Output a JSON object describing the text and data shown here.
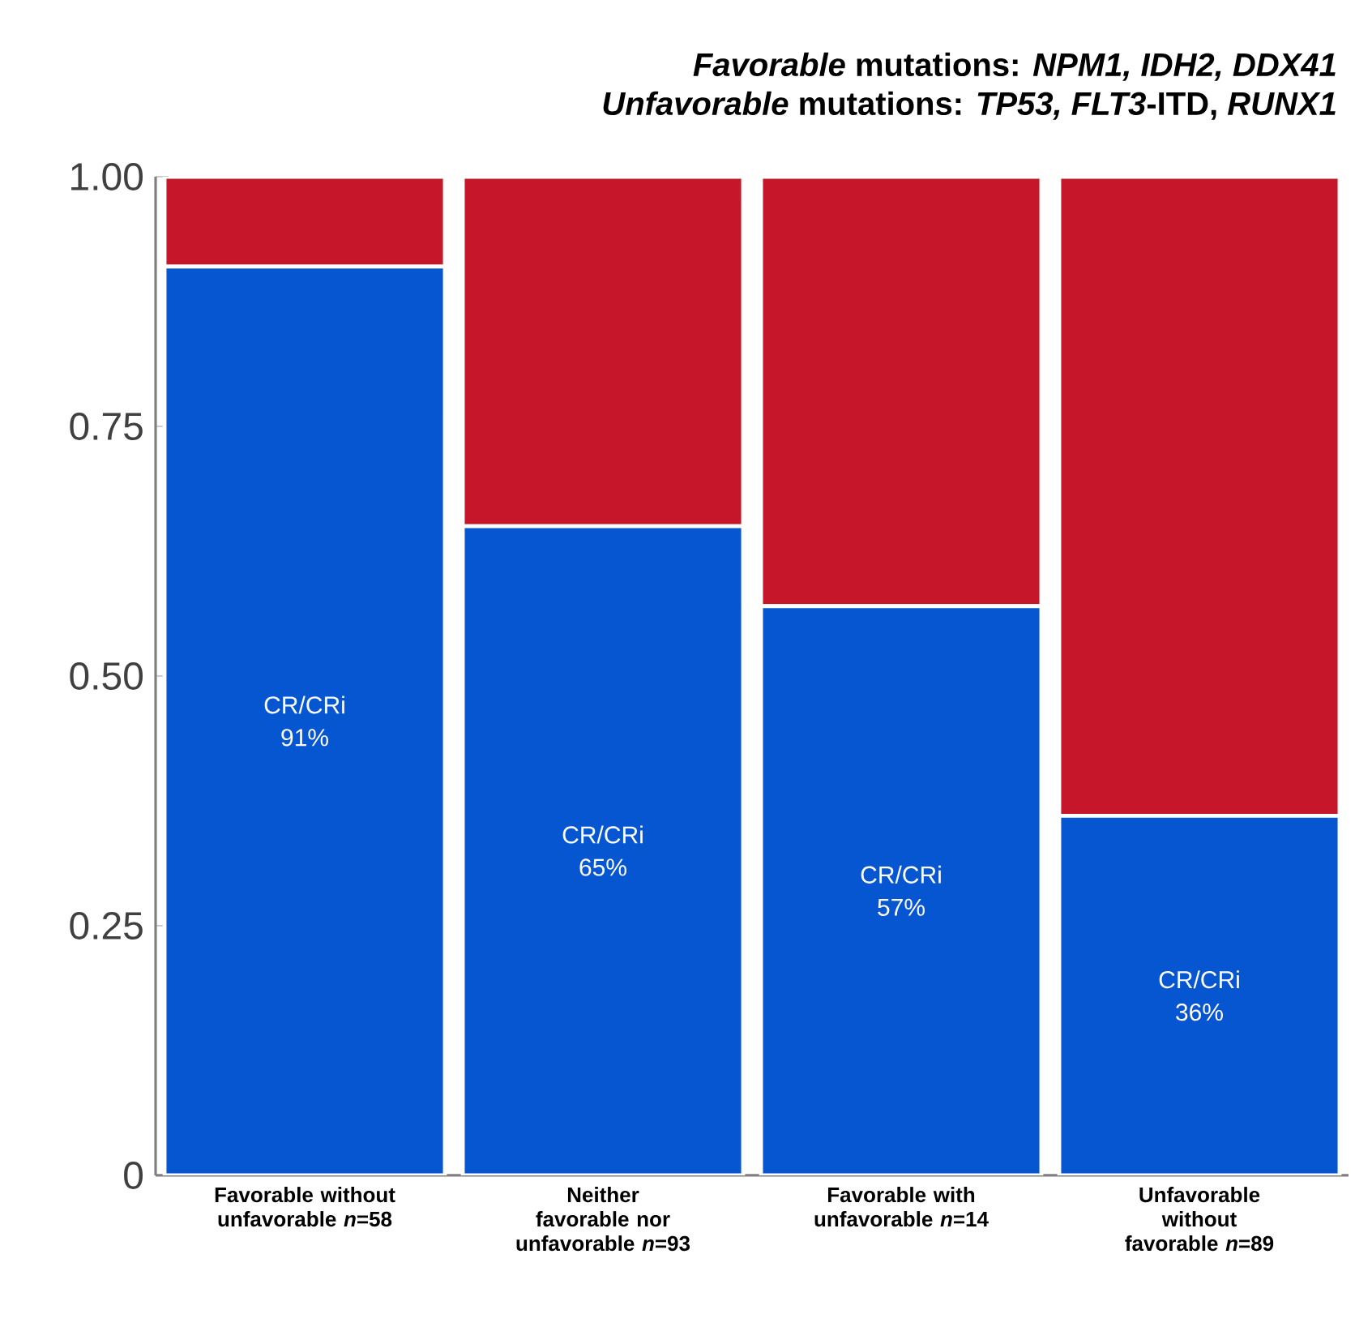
{
  "chart_data": {
    "type": "bar",
    "stacked": true,
    "title": "*Favorable* mutations: *NPM1, IDH2, DDX41*",
    "subtitle": "*Unfavorable* mutations: *TP53, FLT3*-ITD, *RUNX1*",
    "categories": [
      "Favorable without unfavorable *n*=58",
      "Neither favorable nor unfavorable *n*=93",
      "Favorable with unfavorable *n*=14",
      "Unfavorable without favorable *n*=89"
    ],
    "series": [
      {
        "color": "#0656d2",
        "values": [
          0.91,
          0.65,
          0.57,
          0.36
        ],
        "value_labels": [
          "CR/CRi 91%",
          "CR/CRi 65%",
          "CR/CRi 57%",
          "CR/CRi 36%"
        ]
      },
      {
        "color": "#c5162a",
        "values": [
          0.09,
          0.35,
          0.43,
          0.64
        ]
      }
    ],
    "ylim": [
      0,
      1
    ],
    "yticks": [
      {
        "value": 0,
        "label": "0"
      },
      {
        "value": 0.25,
        "label": "0.25"
      },
      {
        "value": 0.5,
        "label": "0.50"
      },
      {
        "value": 0.75,
        "label": "0.75"
      },
      {
        "value": 1,
        "label": "1.00"
      }
    ]
  }
}
